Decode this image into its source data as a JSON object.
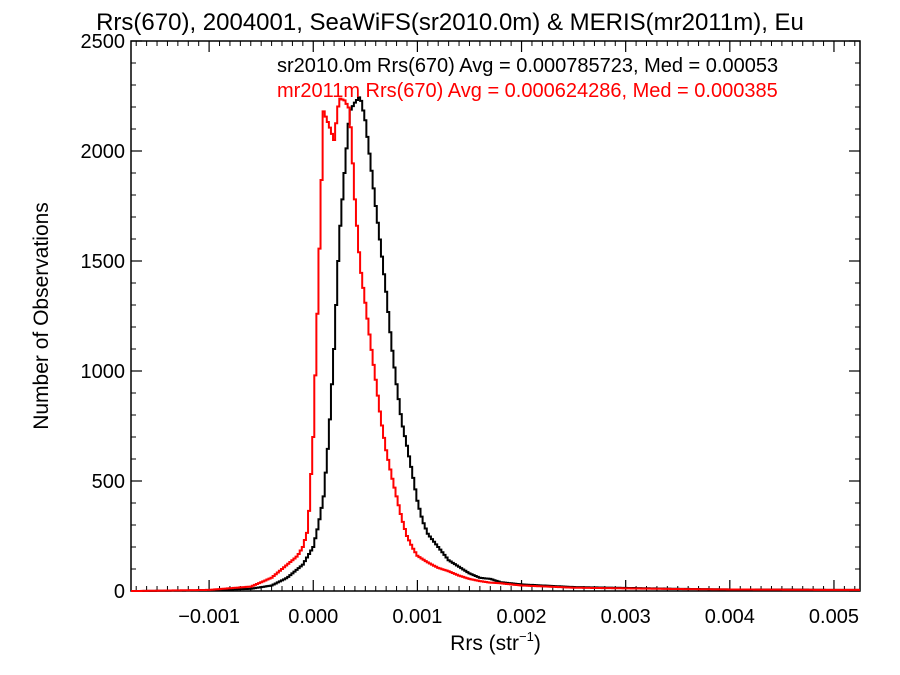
{
  "chart_data": {
    "type": "line",
    "title": "Rrs(670), 2004001, SeaWiFS(sr2010.0m) & MERIS(mr2011m), Eu",
    "xlabel": "Rrs (str",
    "xlabel_sup": "−1",
    "xlabel_close": ")",
    "ylabel": "Number of Observations",
    "xlim": [
      -0.00175,
      0.00525
    ],
    "ylim": [
      0,
      2500
    ],
    "x_ticks": [
      -0.001,
      0.0,
      0.001,
      0.002,
      0.003,
      0.004,
      0.005
    ],
    "x_tick_labels": [
      "−0.001",
      "0.000",
      "0.001",
      "0.002",
      "0.003",
      "0.004",
      "0.005"
    ],
    "y_ticks": [
      0,
      500,
      1000,
      1500,
      2000,
      2500
    ],
    "y_tick_labels": [
      "0",
      "500",
      "1000",
      "1500",
      "2000",
      "2500"
    ],
    "legend_placement": "top-right",
    "grid": false,
    "series": [
      {
        "name": "sr2010.0m Rrs(670) Avg = 0.000785723, Med = 0.00053",
        "color": "#000000",
        "x": [
          -0.0017,
          -0.001,
          -0.0006,
          -0.0004,
          -0.00025,
          -0.0001,
          0.0,
          5e-05,
          0.0001,
          0.00015,
          0.0002,
          0.00025,
          0.0003,
          0.00035,
          0.0004,
          0.00045,
          0.0005,
          0.00055,
          0.0006,
          0.00065,
          0.0007,
          0.00075,
          0.0008,
          0.00085,
          0.0009,
          0.00095,
          0.001,
          0.00105,
          0.0011,
          0.0012,
          0.0013,
          0.0014,
          0.0015,
          0.0016,
          0.0017,
          0.0018,
          0.002,
          0.0025,
          0.003,
          0.0035,
          0.004,
          0.0045,
          0.005,
          0.00525
        ],
        "y": [
          0,
          3,
          10,
          25,
          60,
          120,
          200,
          300,
          430,
          700,
          1100,
          1600,
          1900,
          2180,
          2220,
          2250,
          2140,
          1950,
          1750,
          1560,
          1360,
          1130,
          940,
          770,
          660,
          540,
          410,
          320,
          260,
          200,
          140,
          110,
          80,
          60,
          55,
          40,
          30,
          18,
          14,
          10,
          7,
          7,
          5,
          5
        ]
      },
      {
        "name": "mr2011m Rrs(670) Avg = 0.000624286, Med = 0.000385",
        "color": "#ff0000",
        "x": [
          -0.0017,
          -0.001,
          -0.0006,
          -0.0004,
          -0.00025,
          -0.00015,
          -0.0001,
          -5e-05,
          0.0,
          5e-05,
          0.0001,
          0.00015,
          0.0002,
          0.00025,
          0.0003,
          0.00035,
          0.0004,
          0.00045,
          0.0005,
          0.00055,
          0.0006,
          0.00065,
          0.0007,
          0.00075,
          0.0008,
          0.00085,
          0.0009,
          0.00095,
          0.001,
          0.0011,
          0.0012,
          0.0013,
          0.0014,
          0.0015,
          0.0016,
          0.0017,
          0.0018,
          0.002,
          0.0025,
          0.003,
          0.0035,
          0.004,
          0.0045,
          0.005,
          0.00525
        ],
        "y": [
          0,
          5,
          20,
          60,
          120,
          160,
          200,
          280,
          700,
          1400,
          2180,
          2120,
          2050,
          2240,
          2230,
          2190,
          1780,
          1480,
          1310,
          1130,
          960,
          780,
          640,
          530,
          430,
          330,
          250,
          200,
          160,
          130,
          105,
          90,
          70,
          55,
          45,
          38,
          35,
          25,
          15,
          12,
          9,
          7,
          6,
          5,
          5
        ]
      }
    ]
  }
}
